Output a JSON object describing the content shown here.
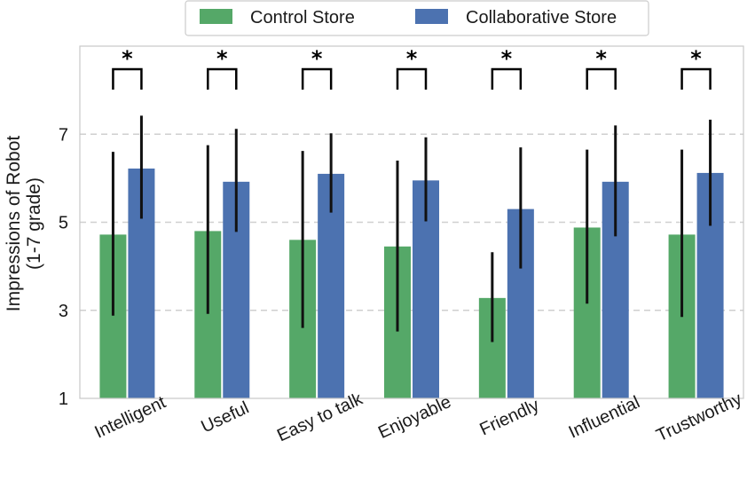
{
  "chart_data": {
    "type": "bar",
    "title": "",
    "xlabel": "",
    "ylabel": "Impressions of Robot",
    "ylabel_sub": "(1-7 grade)",
    "ylim": [
      1,
      9
    ],
    "yticks": [
      1,
      3,
      5,
      7
    ],
    "grid": "horizontal dashed",
    "legend_position": "top-center",
    "categories": [
      "Intelligent",
      "Useful",
      "Easy to talk",
      "Enjoyable",
      "Friendly",
      "Influential",
      "Trustworthy"
    ],
    "series": [
      {
        "name": "Control Store",
        "color": "#55a868",
        "values": [
          4.72,
          4.8,
          4.6,
          4.45,
          3.28,
          4.88,
          4.72
        ],
        "err_low": [
          2.88,
          2.92,
          2.6,
          2.52,
          2.28,
          3.15,
          2.85
        ],
        "err_high": [
          6.6,
          6.75,
          6.62,
          6.4,
          4.32,
          6.65,
          6.65
        ]
      },
      {
        "name": "Collaborative Store",
        "color": "#4c72b0",
        "values": [
          6.22,
          5.92,
          6.1,
          5.95,
          5.3,
          5.92,
          6.12
        ],
        "err_low": [
          5.08,
          4.78,
          5.22,
          5.02,
          3.95,
          4.68,
          4.92
        ],
        "err_high": [
          7.42,
          7.12,
          7.02,
          6.93,
          6.7,
          7.2,
          7.33
        ]
      }
    ],
    "significance": [
      "*",
      "*",
      "*",
      "*",
      "*",
      "*",
      "*"
    ]
  }
}
